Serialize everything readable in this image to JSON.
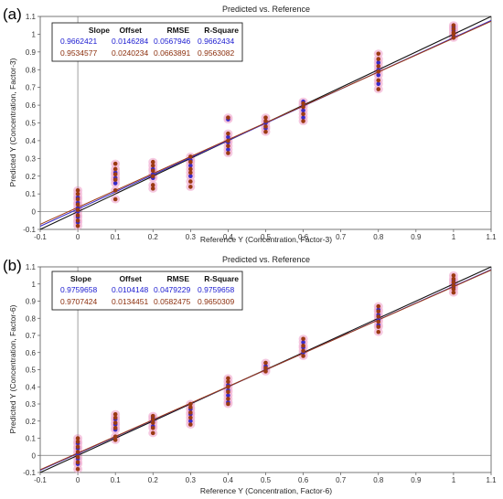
{
  "panels": [
    {
      "label": "(a)",
      "title": "Predicted vs. Reference",
      "xlabel": "Reference Y (Concentration, Factor-3)",
      "ylabel": "Predicted Y (Concentration, Factor-3)",
      "stats": {
        "headers": [
          "Slope",
          "Offset",
          "RMSE",
          "R-Square"
        ],
        "rows": [
          {
            "values": [
              "0.9662421",
              "0.0146284",
              "0.0567946",
              "0.9662434"
            ],
            "color": "#1a1ad0"
          },
          {
            "values": [
              "0.9534577",
              "0.0240234",
              "0.0663891",
              "0.9563082"
            ],
            "color": "#8b2e0c"
          }
        ]
      }
    },
    {
      "label": "(b)",
      "title": "Predicted vs. Reference",
      "xlabel": "Reference Y (Concentration, Factor-6)",
      "ylabel": "Predicted Y (Concentration, Factor-6)",
      "stats": {
        "headers": [
          "Slope",
          "Offset",
          "RMSE",
          "R-Square"
        ],
        "rows": [
          {
            "values": [
              "0.9759658",
              "0.0104148",
              "0.0479229",
              "0.9759658"
            ],
            "color": "#1a1ad0"
          },
          {
            "values": [
              "0.9707424",
              "0.0134451",
              "0.0582475",
              "0.9650309"
            ],
            "color": "#8b2e0c"
          }
        ]
      }
    }
  ],
  "chart_data": [
    {
      "type": "scatter",
      "title": "Predicted vs. Reference",
      "xlabel": "Reference Y (Concentration, Factor-3)",
      "ylabel": "Predicted Y (Concentration, Factor-3)",
      "xlim": [
        -0.1,
        1.1
      ],
      "ylim": [
        -0.1,
        1.1
      ],
      "xticks": [
        -0.1,
        0,
        0.1,
        0.2,
        0.3,
        0.4,
        0.5,
        0.6,
        0.7,
        0.8,
        0.9,
        1,
        1.1
      ],
      "yticks": [
        -0.1,
        0,
        0.1,
        0.2,
        0.3,
        0.4,
        0.5,
        0.6,
        0.7,
        0.8,
        0.9,
        1,
        1.1
      ],
      "grid": false,
      "colors": {
        "calibration": "#3a2bc8",
        "validation": "#9b3a12",
        "target": "#111111",
        "halo": "#f2b6d6"
      },
      "series": [
        {
          "role": "calibration",
          "points": [
            [
              0,
              -0.06
            ],
            [
              0,
              -0.03
            ],
            [
              0,
              0.0
            ],
            [
              0,
              0.02
            ],
            [
              0,
              0.05
            ],
            [
              0,
              0.08
            ],
            [
              0.1,
              0.16
            ],
            [
              0.1,
              0.19
            ],
            [
              0.1,
              0.22
            ],
            [
              0.2,
              0.19
            ],
            [
              0.2,
              0.21
            ],
            [
              0.2,
              0.24
            ],
            [
              0.3,
              0.2
            ],
            [
              0.3,
              0.26
            ],
            [
              0.3,
              0.29
            ],
            [
              0.4,
              0.35
            ],
            [
              0.4,
              0.39
            ],
            [
              0.4,
              0.42
            ],
            [
              0.4,
              0.52
            ],
            [
              0.5,
              0.47
            ],
            [
              0.5,
              0.5
            ],
            [
              0.6,
              0.53
            ],
            [
              0.6,
              0.57
            ],
            [
              0.6,
              0.6
            ],
            [
              0.6,
              0.62
            ],
            [
              0.8,
              0.72
            ],
            [
              0.8,
              0.77
            ],
            [
              0.8,
              0.8
            ],
            [
              0.8,
              0.84
            ],
            [
              1,
              0.99
            ],
            [
              1,
              1.02
            ],
            [
              1,
              1.04
            ]
          ]
        },
        {
          "role": "validation",
          "points": [
            [
              0,
              -0.08
            ],
            [
              0,
              -0.05
            ],
            [
              0,
              -0.02
            ],
            [
              0,
              0.01
            ],
            [
              0,
              0.04
            ],
            [
              0,
              0.07
            ],
            [
              0,
              0.1
            ],
            [
              0,
              0.12
            ],
            [
              0.1,
              0.07
            ],
            [
              0.1,
              0.12
            ],
            [
              0.1,
              0.18
            ],
            [
              0.1,
              0.21
            ],
            [
              0.1,
              0.24
            ],
            [
              0.1,
              0.27
            ],
            [
              0.2,
              0.13
            ],
            [
              0.2,
              0.15
            ],
            [
              0.2,
              0.2
            ],
            [
              0.2,
              0.23
            ],
            [
              0.2,
              0.26
            ],
            [
              0.2,
              0.28
            ],
            [
              0.3,
              0.14
            ],
            [
              0.3,
              0.17
            ],
            [
              0.3,
              0.22
            ],
            [
              0.3,
              0.24
            ],
            [
              0.3,
              0.28
            ],
            [
              0.3,
              0.31
            ],
            [
              0.4,
              0.33
            ],
            [
              0.4,
              0.37
            ],
            [
              0.4,
              0.4
            ],
            [
              0.4,
              0.44
            ],
            [
              0.4,
              0.53
            ],
            [
              0.5,
              0.45
            ],
            [
              0.5,
              0.48
            ],
            [
              0.5,
              0.51
            ],
            [
              0.5,
              0.53
            ],
            [
              0.6,
              0.51
            ],
            [
              0.6,
              0.55
            ],
            [
              0.6,
              0.59
            ],
            [
              0.6,
              0.61
            ],
            [
              0.8,
              0.69
            ],
            [
              0.8,
              0.74
            ],
            [
              0.8,
              0.79
            ],
            [
              0.8,
              0.82
            ],
            [
              0.8,
              0.86
            ],
            [
              0.8,
              0.89
            ],
            [
              1,
              0.98
            ],
            [
              1,
              1.0
            ],
            [
              1,
              1.01
            ],
            [
              1,
              1.03
            ],
            [
              1,
              1.05
            ]
          ]
        }
      ],
      "lines": [
        {
          "role": "target",
          "slope": 1,
          "offset": 0
        },
        {
          "role": "calibration",
          "slope": 0.9662421,
          "offset": 0.0146284
        },
        {
          "role": "validation",
          "slope": 0.9534577,
          "offset": 0.0240234
        }
      ]
    },
    {
      "type": "scatter",
      "title": "Predicted vs. Reference",
      "xlabel": "Reference Y (Concentration, Factor-6)",
      "ylabel": "Predicted Y (Concentration, Factor-6)",
      "xlim": [
        -0.1,
        1.1
      ],
      "ylim": [
        -0.1,
        1.1
      ],
      "xticks": [
        -0.1,
        0,
        0.1,
        0.2,
        0.3,
        0.4,
        0.5,
        0.6,
        0.7,
        0.8,
        0.9,
        1,
        1.1
      ],
      "yticks": [
        -0.1,
        0,
        0.1,
        0.2,
        0.3,
        0.4,
        0.5,
        0.6,
        0.7,
        0.8,
        0.9,
        1,
        1.1
      ],
      "grid": false,
      "colors": {
        "calibration": "#3a2bc8",
        "validation": "#9b3a12",
        "target": "#111111",
        "halo": "#f2b6d6"
      },
      "series": [
        {
          "role": "calibration",
          "points": [
            [
              0,
              -0.05
            ],
            [
              0,
              -0.02
            ],
            [
              0,
              0.01
            ],
            [
              0,
              0.04
            ],
            [
              0,
              0.07
            ],
            [
              0.1,
              0.15
            ],
            [
              0.1,
              0.18
            ],
            [
              0.1,
              0.21
            ],
            [
              0.2,
              0.17
            ],
            [
              0.2,
              0.2
            ],
            [
              0.2,
              0.22
            ],
            [
              0.3,
              0.2
            ],
            [
              0.3,
              0.24
            ],
            [
              0.3,
              0.27
            ],
            [
              0.4,
              0.31
            ],
            [
              0.4,
              0.35
            ],
            [
              0.4,
              0.38
            ],
            [
              0.4,
              0.41
            ],
            [
              0.5,
              0.5
            ],
            [
              0.5,
              0.52
            ],
            [
              0.6,
              0.6
            ],
            [
              0.6,
              0.63
            ],
            [
              0.6,
              0.66
            ],
            [
              0.8,
              0.76
            ],
            [
              0.8,
              0.79
            ],
            [
              0.8,
              0.82
            ],
            [
              0.8,
              0.85
            ],
            [
              1,
              0.98
            ],
            [
              1,
              1.0
            ],
            [
              1,
              1.02
            ]
          ]
        },
        {
          "role": "validation",
          "points": [
            [
              0,
              -0.08
            ],
            [
              0,
              -0.04
            ],
            [
              0,
              -0.01
            ],
            [
              0,
              0.02
            ],
            [
              0,
              0.05
            ],
            [
              0,
              0.08
            ],
            [
              0,
              0.1
            ],
            [
              0.1,
              0.09
            ],
            [
              0.1,
              0.11
            ],
            [
              0.1,
              0.16
            ],
            [
              0.1,
              0.19
            ],
            [
              0.1,
              0.22
            ],
            [
              0.1,
              0.24
            ],
            [
              0.2,
              0.13
            ],
            [
              0.2,
              0.16
            ],
            [
              0.2,
              0.19
            ],
            [
              0.2,
              0.21
            ],
            [
              0.2,
              0.23
            ],
            [
              0.3,
              0.18
            ],
            [
              0.3,
              0.22
            ],
            [
              0.3,
              0.25
            ],
            [
              0.3,
              0.28
            ],
            [
              0.3,
              0.3
            ],
            [
              0.4,
              0.3
            ],
            [
              0.4,
              0.33
            ],
            [
              0.4,
              0.37
            ],
            [
              0.4,
              0.4
            ],
            [
              0.4,
              0.43
            ],
            [
              0.4,
              0.45
            ],
            [
              0.5,
              0.49
            ],
            [
              0.5,
              0.51
            ],
            [
              0.5,
              0.54
            ],
            [
              0.6,
              0.58
            ],
            [
              0.6,
              0.61
            ],
            [
              0.6,
              0.64
            ],
            [
              0.6,
              0.68
            ],
            [
              0.8,
              0.72
            ],
            [
              0.8,
              0.75
            ],
            [
              0.8,
              0.78
            ],
            [
              0.8,
              0.81
            ],
            [
              0.8,
              0.84
            ],
            [
              0.8,
              0.87
            ],
            [
              1,
              0.95
            ],
            [
              1,
              0.97
            ],
            [
              1,
              0.99
            ],
            [
              1,
              1.01
            ],
            [
              1,
              1.03
            ],
            [
              1,
              1.05
            ]
          ]
        }
      ],
      "lines": [
        {
          "role": "target",
          "slope": 1,
          "offset": 0
        },
        {
          "role": "calibration",
          "slope": 0.9759658,
          "offset": 0.0104148
        },
        {
          "role": "validation",
          "slope": 0.9707424,
          "offset": 0.0134451
        }
      ]
    }
  ]
}
